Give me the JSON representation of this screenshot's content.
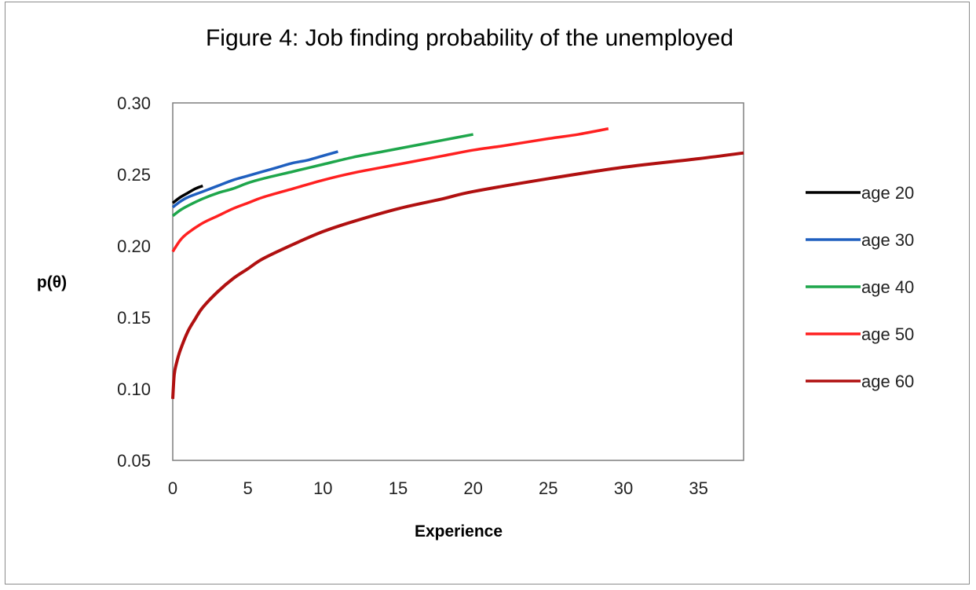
{
  "chart_data": {
    "type": "line",
    "title": "Figure 4: Job finding probability  of the unemployed",
    "xlabel": "Experience",
    "ylabel": "p(θ)",
    "xlim": [
      0,
      38
    ],
    "ylim": [
      0.05,
      0.3
    ],
    "xticks": [
      "0",
      "5",
      "10",
      "15",
      "20",
      "25",
      "30",
      "35"
    ],
    "yticks": [
      "0.05",
      "0.10",
      "0.15",
      "0.20",
      "0.25",
      "0.30"
    ],
    "grid": false,
    "legend_position": "right",
    "series": [
      {
        "name": "age 20",
        "color": "#000000",
        "x": [
          0,
          0.5,
          1,
          1.5,
          2
        ],
        "y": [
          0.23,
          0.234,
          0.237,
          0.24,
          0.242
        ]
      },
      {
        "name": "age 30",
        "color": "#1f5fbf",
        "x": [
          0,
          0.5,
          1,
          2,
          3,
          4,
          5,
          6,
          7,
          8,
          9,
          10,
          11
        ],
        "y": [
          0.227,
          0.231,
          0.234,
          0.238,
          0.242,
          0.246,
          0.249,
          0.252,
          0.255,
          0.258,
          0.26,
          0.263,
          0.266
        ]
      },
      {
        "name": "age 40",
        "color": "#1ea64b",
        "x": [
          0,
          0.5,
          1,
          2,
          3,
          4,
          5,
          6,
          8,
          10,
          12,
          14,
          16,
          18,
          20
        ],
        "y": [
          0.221,
          0.225,
          0.228,
          0.233,
          0.237,
          0.24,
          0.244,
          0.247,
          0.252,
          0.257,
          0.262,
          0.266,
          0.27,
          0.274,
          0.278
        ]
      },
      {
        "name": "age 50",
        "color": "#ff2020",
        "x": [
          0,
          0.5,
          1,
          2,
          3,
          4,
          5,
          6,
          8,
          10,
          12,
          15,
          18,
          20,
          22,
          25,
          27,
          29
        ],
        "y": [
          0.196,
          0.204,
          0.209,
          0.216,
          0.221,
          0.226,
          0.23,
          0.234,
          0.24,
          0.246,
          0.251,
          0.257,
          0.263,
          0.267,
          0.27,
          0.275,
          0.278,
          0.282
        ]
      },
      {
        "name": "age 60",
        "color": "#b01010",
        "x": [
          0,
          0.1,
          0.25,
          0.5,
          1,
          1.5,
          2,
          3,
          4,
          5,
          6,
          8,
          10,
          12,
          15,
          18,
          20,
          25,
          30,
          35,
          38
        ],
        "y": [
          0.093,
          0.11,
          0.118,
          0.127,
          0.14,
          0.149,
          0.157,
          0.168,
          0.177,
          0.184,
          0.191,
          0.201,
          0.21,
          0.217,
          0.226,
          0.233,
          0.238,
          0.247,
          0.255,
          0.261,
          0.265
        ]
      }
    ]
  }
}
